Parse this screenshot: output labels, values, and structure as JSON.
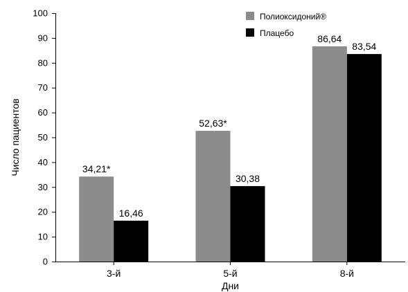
{
  "chart_data": {
    "type": "bar",
    "categories": [
      "3-й",
      "5-й",
      "8-й"
    ],
    "xlabel": "Дни",
    "ylabel": "Число пациентов",
    "ylim": [
      0,
      100
    ],
    "yticks": [
      0,
      10,
      20,
      30,
      40,
      50,
      60,
      70,
      80,
      90,
      100
    ],
    "grid": false,
    "legend_position": "top-right",
    "series": [
      {
        "name": "Полиоксидоний®",
        "color": "#8c8c8c",
        "values": [
          34.21,
          52.63,
          86.64
        ],
        "labels": [
          "34,21*",
          "52,63*",
          "86,64"
        ]
      },
      {
        "name": "Плацебо",
        "color": "#000000",
        "values": [
          16.46,
          30.38,
          83.54
        ],
        "labels": [
          "16,46",
          "30,38",
          "83,54"
        ]
      }
    ]
  }
}
